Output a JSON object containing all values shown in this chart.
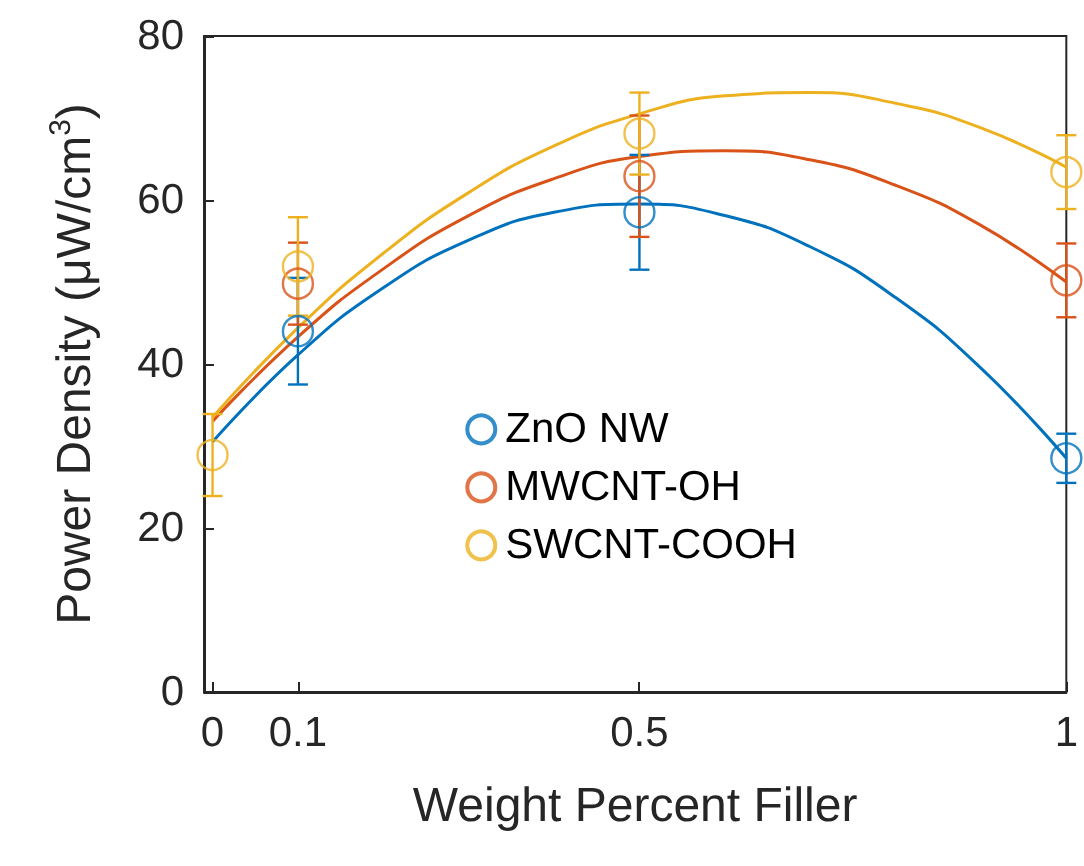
{
  "chart_data": {
    "type": "scatter",
    "xlabel": "Weight Percent Filler",
    "ylabel": "Power Density (μW/cm$^{3}$)",
    "x": [
      0,
      0.1,
      0.5,
      1
    ],
    "xlim": [
      -0.01,
      1
    ],
    "xticks": [
      0,
      0.1,
      0.5,
      1
    ],
    "ylim": [
      0,
      80
    ],
    "yticks": [
      0,
      20,
      40,
      60,
      80
    ],
    "grid": false,
    "legend": "center",
    "marker": "circle",
    "series": [
      {
        "name": "ZnO NW",
        "color": "#0072bd",
        "values": [
          null,
          44,
          58.5,
          28.5
        ],
        "errors": [
          null,
          6.5,
          7,
          3
        ]
      },
      {
        "name": "MWCNT-OH",
        "color": "#d95319",
        "values": [
          null,
          49.8,
          62.9,
          50.2
        ],
        "errors": [
          null,
          5,
          7.4,
          4.5
        ]
      },
      {
        "name": "SWCNT-COOH",
        "color": "#edb120",
        "values": [
          28.9,
          51.9,
          68.1,
          63.4
        ],
        "errors": [
          5,
          6,
          5,
          4.5
        ]
      },
      {
        "type": "line",
        "marker": "none",
        "color": "#0072bd",
        "x": [
          0,
          0.1,
          0.2,
          0.3,
          0.4,
          0.5,
          0.6,
          0.7,
          0.8,
          0.9,
          1
        ],
        "values": [
          30.5,
          41.1,
          49.3,
          55.1,
          58.5,
          59.5,
          58.1,
          54.3,
          48.1,
          39.5,
          28.5
        ]
      },
      {
        "type": "line",
        "marker": "none",
        "color": "#d95319",
        "x": [
          0,
          0.1,
          0.2,
          0.3,
          0.4,
          0.5,
          0.6,
          0.7,
          0.8,
          0.9,
          1
        ],
        "values": [
          33,
          43.3,
          51.6,
          58.1,
          62.6,
          65.3,
          66.0,
          64.9,
          61.8,
          56.9,
          50.0
        ]
      },
      {
        "type": "line",
        "marker": "none",
        "color": "#edb120",
        "x": [
          0,
          0.1,
          0.2,
          0.3,
          0.4,
          0.5,
          0.6,
          0.7,
          0.8,
          0.9,
          1
        ],
        "values": [
          33.5,
          44.4,
          53.5,
          60.9,
          66.6,
          70.5,
          72.7,
          73.1,
          71.8,
          68.8,
          64.0
        ]
      }
    ]
  }
}
